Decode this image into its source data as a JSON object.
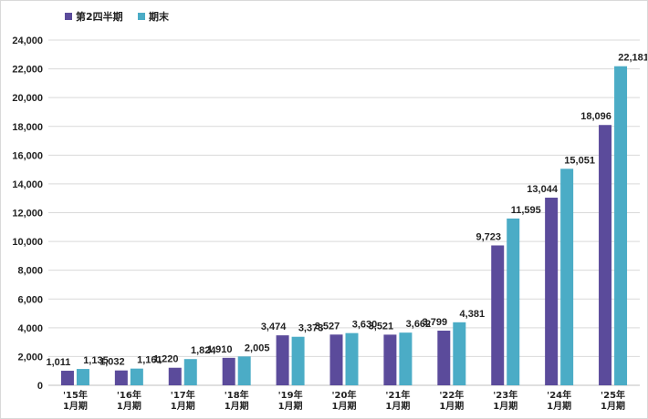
{
  "chart_data": {
    "type": "bar",
    "categories": [
      [
        "'15年",
        "1月期"
      ],
      [
        "'16年",
        "1月期"
      ],
      [
        "'17年",
        "1月期"
      ],
      [
        "'18年",
        "1月期"
      ],
      [
        "'19年",
        "1月期"
      ],
      [
        "'20年",
        "1月期"
      ],
      [
        "'21年",
        "1月期"
      ],
      [
        "'22年",
        "1月期"
      ],
      [
        "'23年",
        "1月期"
      ],
      [
        "'24年",
        "1月期"
      ],
      [
        "'25年",
        "1月期"
      ]
    ],
    "series": [
      {
        "name": "第2四半期",
        "color": "#5b4b9b",
        "values": [
          1011,
          1032,
          1220,
          1910,
          3474,
          3527,
          3521,
          3799,
          9723,
          13044,
          18096
        ]
      },
      {
        "name": "期末",
        "color": "#4bacc6",
        "values": [
          1135,
          1161,
          1824,
          2005,
          3373,
          3630,
          3662,
          4381,
          11595,
          15051,
          22181
        ]
      }
    ],
    "ylim": [
      0,
      24000
    ],
    "yticks": [
      0,
      2000,
      4000,
      6000,
      8000,
      10000,
      12000,
      14000,
      16000,
      18000,
      20000,
      22000,
      24000
    ],
    "ytick_labels": [
      "0",
      "2,000",
      "4,000",
      "6,000",
      "8,000",
      "10,000",
      "12,000",
      "14,000",
      "16,000",
      "18,000",
      "20,000",
      "22,000",
      "24,000"
    ],
    "grid": true,
    "legend_position": "top-left",
    "data_labels": true
  }
}
